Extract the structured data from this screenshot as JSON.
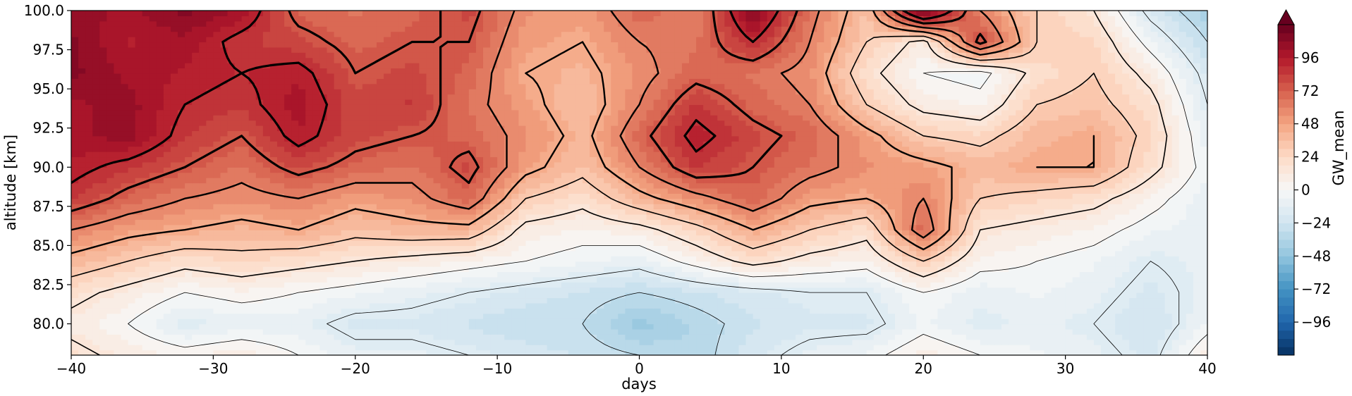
{
  "chart_data": {
    "type": "heatmap",
    "subtype": "filled-contour with line-contour overlay",
    "title": "",
    "xlabel": "days",
    "ylabel": "altitude [km]",
    "xlim": [
      -40,
      40
    ],
    "ylim": [
      78,
      100
    ],
    "x_ticks": [
      -40,
      -30,
      -20,
      -10,
      0,
      10,
      20,
      30,
      40
    ],
    "x_tick_labels": [
      "−40",
      "−30",
      "−20",
      "−10",
      "0",
      "10",
      "20",
      "30",
      "40"
    ],
    "y_ticks": [
      80.0,
      82.5,
      85.0,
      87.5,
      90.0,
      92.5,
      95.0,
      97.5,
      100.0
    ],
    "y_tick_labels": [
      "80.0",
      "82.5",
      "85.0",
      "87.5",
      "90.0",
      "92.5",
      "95.0",
      "97.5",
      "100.0"
    ],
    "colorbar": {
      "label": "GW_mean",
      "colormap": "RdBu_r",
      "vmin": -120,
      "vmax": 120,
      "extend": "max",
      "ticks": [
        -96,
        -72,
        -48,
        -24,
        0,
        24,
        48,
        72,
        96
      ],
      "tick_labels": [
        "−96",
        "−72",
        "−48",
        "−24",
        "0",
        "24",
        "48",
        "72",
        "96"
      ]
    },
    "contour_line_color": "#000000",
    "grid": false,
    "x": [
      -40,
      -36,
      -32,
      -28,
      -24,
      -20,
      -16,
      -12,
      -8,
      -4,
      0,
      4,
      8,
      12,
      16,
      20,
      24,
      28,
      32,
      36,
      40
    ],
    "y": [
      78,
      80,
      82,
      84,
      86,
      88,
      90,
      92,
      94,
      96,
      98,
      100
    ],
    "z": [
      [
        20,
        10,
        5,
        10,
        0,
        -10,
        -10,
        -15,
        -20,
        -25,
        -30,
        -35,
        -20,
        -10,
        -5,
        10,
        0,
        -5,
        -10,
        -20,
        10
      ],
      [
        10,
        0,
        -15,
        -10,
        -10,
        -20,
        -20,
        -25,
        -30,
        -30,
        -45,
        -35,
        -25,
        -20,
        -20,
        -5,
        -15,
        -10,
        -15,
        -25,
        -5
      ],
      [
        20,
        10,
        0,
        5,
        0,
        -5,
        -10,
        -15,
        -20,
        -25,
        -30,
        -25,
        -20,
        -15,
        -15,
        0,
        -10,
        -5,
        -10,
        -20,
        -10
      ],
      [
        40,
        30,
        20,
        25,
        20,
        15,
        10,
        5,
        0,
        -5,
        -10,
        5,
        20,
        10,
        5,
        30,
        5,
        0,
        -5,
        -15,
        -10
      ],
      [
        60,
        50,
        45,
        40,
        45,
        35,
        40,
        40,
        10,
        5,
        10,
        25,
        45,
        30,
        20,
        70,
        15,
        10,
        5,
        -5,
        -10
      ],
      [
        85,
        70,
        60,
        55,
        60,
        50,
        55,
        70,
        30,
        20,
        40,
        55,
        70,
        50,
        45,
        60,
        30,
        25,
        20,
        5,
        -10
      ],
      [
        95,
        85,
        75,
        65,
        80,
        70,
        65,
        80,
        50,
        35,
        60,
        85,
        75,
        65,
        55,
        50,
        40,
        45,
        45,
        20,
        -5
      ],
      [
        100,
        105,
        85,
        75,
        95,
        80,
        75,
        70,
        55,
        40,
        70,
        95,
        80,
        70,
        50,
        30,
        25,
        40,
        45,
        25,
        -10
      ],
      [
        100,
        105,
        90,
        85,
        100,
        80,
        85,
        65,
        50,
        35,
        60,
        85,
        70,
        60,
        30,
        10,
        5,
        30,
        35,
        20,
        -15
      ],
      [
        110,
        100,
        95,
        90,
        95,
        75,
        80,
        70,
        45,
        40,
        55,
        70,
        65,
        55,
        20,
        0,
        -5,
        20,
        30,
        10,
        -20
      ],
      [
        110,
        95,
        100,
        85,
        80,
        70,
        75,
        75,
        50,
        45,
        60,
        65,
        90,
        60,
        30,
        10,
        80,
        30,
        25,
        -5,
        -30
      ],
      [
        105,
        100,
        110,
        100,
        70,
        65,
        70,
        80,
        55,
        50,
        70,
        60,
        110,
        65,
        35,
        120,
        60,
        30,
        15,
        -20,
        -40
      ]
    ]
  }
}
